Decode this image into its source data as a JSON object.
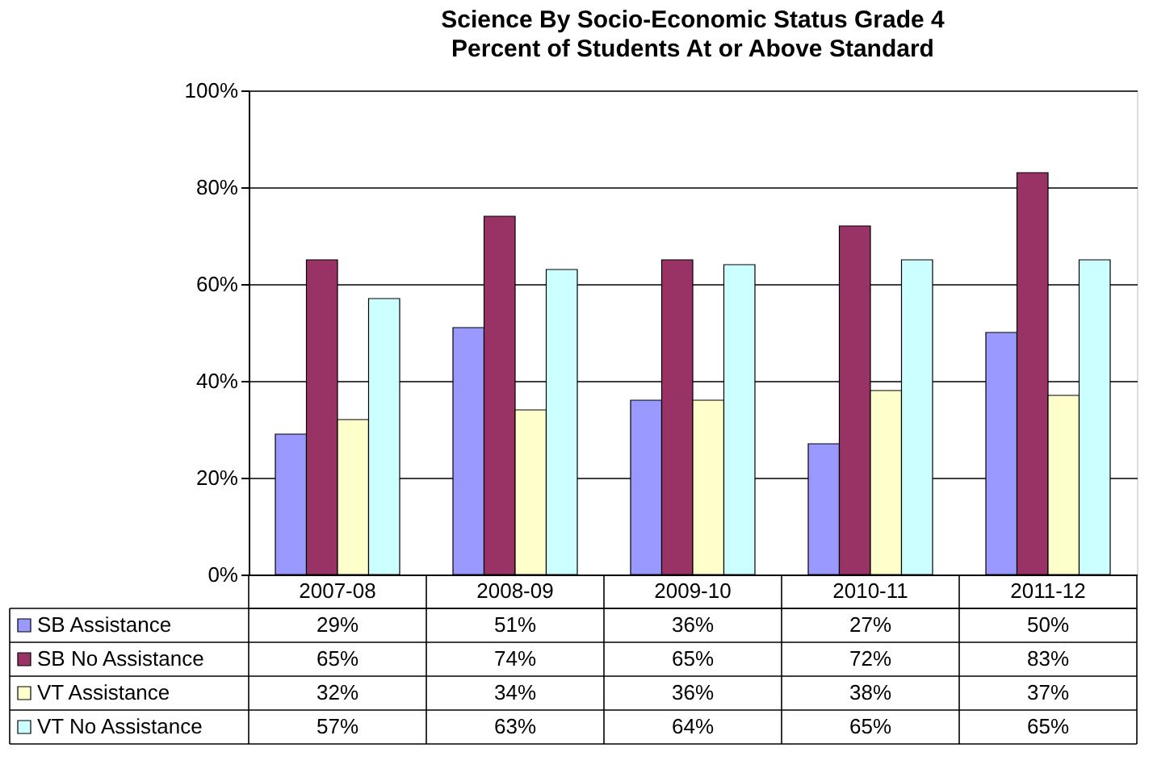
{
  "chart_data": {
    "type": "bar",
    "title": "Science By Socio-Economic Status Grade 4",
    "subtitle": "Percent of Students At or Above Standard",
    "categories": [
      "2007-08",
      "2008-09",
      "2009-10",
      "2010-11",
      "2011-12"
    ],
    "series": [
      {
        "name": "SB Assistance",
        "color": "#9999ff",
        "values": [
          29,
          51,
          36,
          27,
          50
        ],
        "value_labels": [
          "29%",
          "51%",
          "36%",
          "27%",
          "50%"
        ]
      },
      {
        "name": "SB No Assistance",
        "color": "#993366",
        "values": [
          65,
          74,
          65,
          72,
          83
        ],
        "value_labels": [
          "65%",
          "74%",
          "65%",
          "72%",
          "83%"
        ]
      },
      {
        "name": "VT Assistance",
        "color": "#ffffcc",
        "values": [
          32,
          34,
          36,
          38,
          37
        ],
        "value_labels": [
          "32%",
          "34%",
          "36%",
          "38%",
          "37%"
        ]
      },
      {
        "name": "VT No Assistance",
        "color": "#ccffff",
        "values": [
          57,
          63,
          64,
          65,
          65
        ],
        "value_labels": [
          "57%",
          "63%",
          "64%",
          "65%",
          "65%"
        ]
      }
    ],
    "ylim": [
      0,
      100
    ],
    "yticks": [
      {
        "value": 0,
        "label": "0%"
      },
      {
        "value": 20,
        "label": "20%"
      },
      {
        "value": 40,
        "label": "40%"
      },
      {
        "value": 60,
        "label": "60%"
      },
      {
        "value": 80,
        "label": "80%"
      },
      {
        "value": 100,
        "label": "100%"
      }
    ],
    "grid": "y",
    "legend": "bottom"
  }
}
